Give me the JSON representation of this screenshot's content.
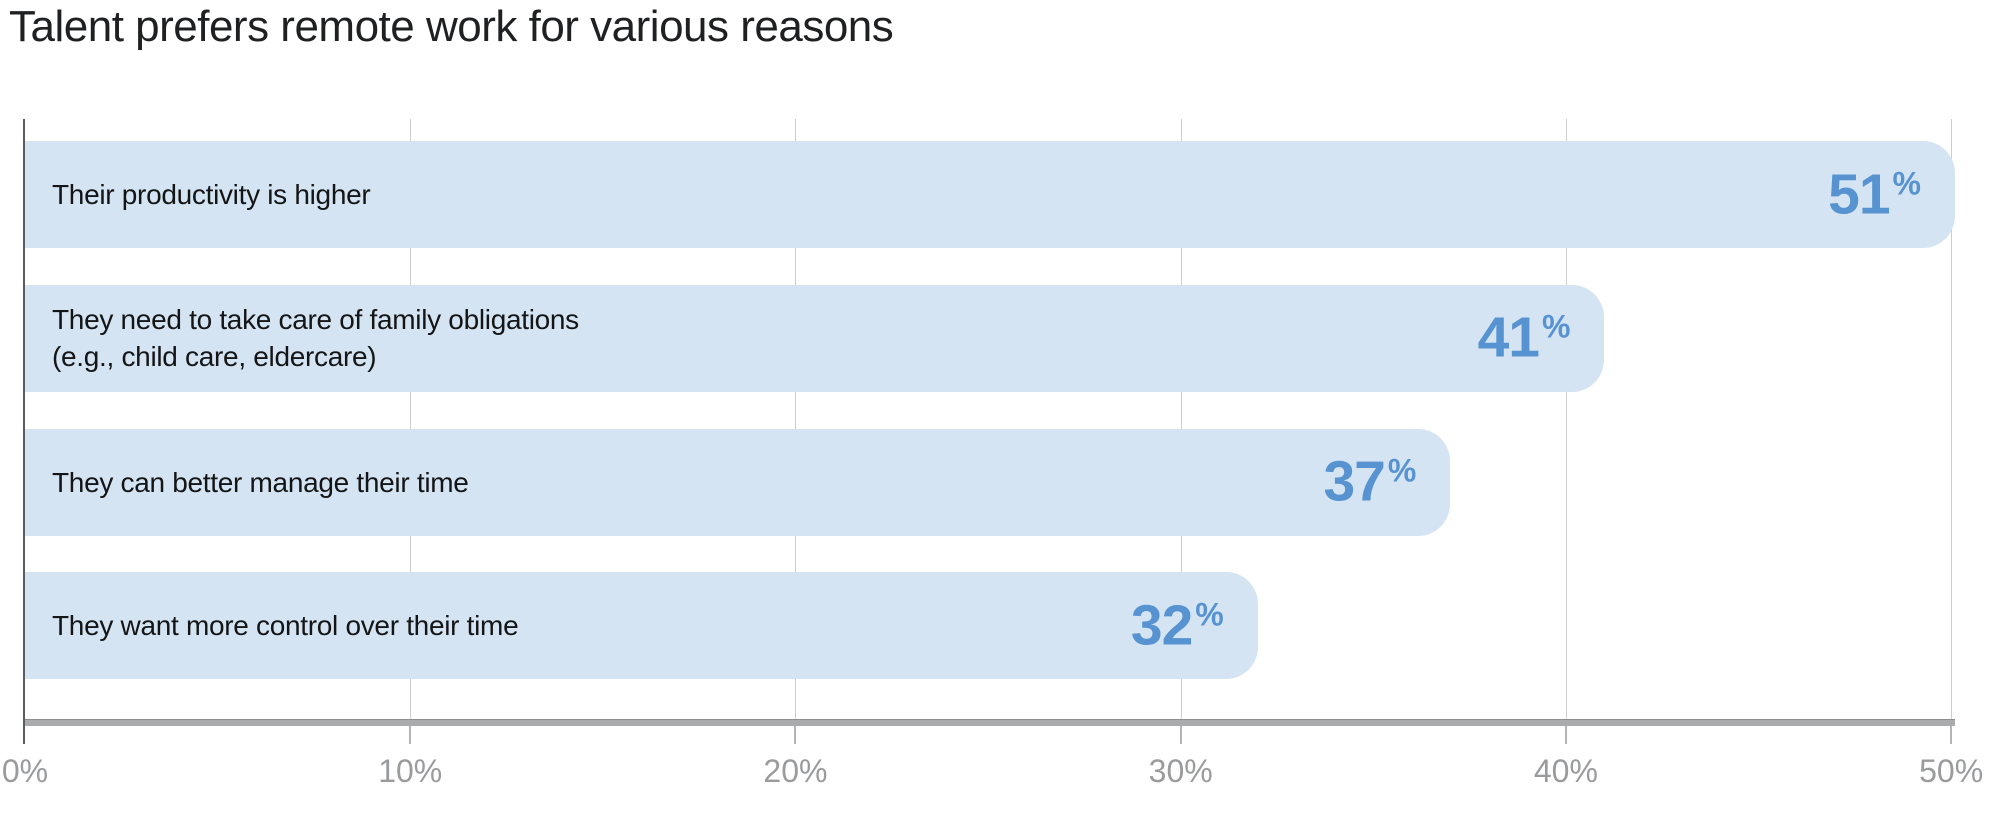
{
  "title": "Talent prefers remote work for various reasons",
  "chart_data": {
    "type": "bar",
    "orientation": "horizontal",
    "title": "Talent prefers remote work for various reasons",
    "categories": [
      "Their productivity is higher",
      "They need to take care of family obligations\n(e.g., child care, eldercare)",
      "They can better manage their time",
      "They want more control over their time"
    ],
    "values": [
      51,
      41,
      37,
      32
    ],
    "value_suffix": "%",
    "xlabel": "",
    "ylabel": "",
    "xlim": [
      0,
      50.1
    ],
    "x_tick_values": [
      0,
      10,
      20,
      30,
      40,
      50
    ],
    "x_tick_labels": [
      "0%",
      "10%",
      "20%",
      "30%",
      "40%",
      "50%"
    ],
    "grid": "vertical",
    "legend": "none",
    "colors": {
      "bar_fill": "#d5e4f2",
      "value_text": "#5793d1",
      "label_text": "#141516",
      "title_text": "#1f2022",
      "gridline": "#cbcdcf",
      "axis_line": "#a9abac",
      "left_axis_line": "#5a5b5d",
      "tick_label": "#9a9b9d"
    }
  }
}
